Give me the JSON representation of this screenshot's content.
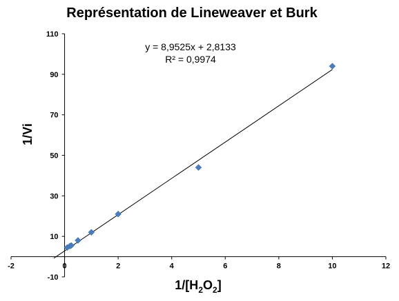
{
  "chart_data": {
    "type": "scatter",
    "title": "Représentation de Lineweaver et Burk",
    "xlabel": {
      "main": "1/[H",
      "sub1": "2",
      "mid": "O",
      "sub2": "2",
      "end": "]"
    },
    "ylabel": "1/Vi",
    "xlim": [
      -2,
      12
    ],
    "ylim": [
      -10,
      110
    ],
    "x_ticks": [
      -2,
      0,
      2,
      4,
      6,
      8,
      10,
      12
    ],
    "y_ticks": [
      -10,
      10,
      30,
      50,
      70,
      90,
      110
    ],
    "x_tick_labels": [
      "-2",
      "0",
      "2",
      "4",
      "6",
      "8",
      "10",
      "12"
    ],
    "y_tick_labels": [
      "-10",
      "10",
      "30",
      "50",
      "70",
      "90",
      "110"
    ],
    "grid": false,
    "legend": "none",
    "marker_color": "#4a7ebb",
    "series": [
      {
        "x": [
          0.1,
          0.2,
          0.25,
          0.5,
          1,
          2,
          5,
          10
        ],
        "y": [
          4.5,
          5.2,
          5.5,
          8,
          12,
          21,
          44,
          94
        ]
      }
    ],
    "trendline": {
      "slope": 8.9525,
      "intercept": 2.8133,
      "x_range": [
        -0.4,
        10
      ],
      "equation": "y = 8,9525x + 2,8133",
      "r2": "R² = 0,9974"
    }
  }
}
